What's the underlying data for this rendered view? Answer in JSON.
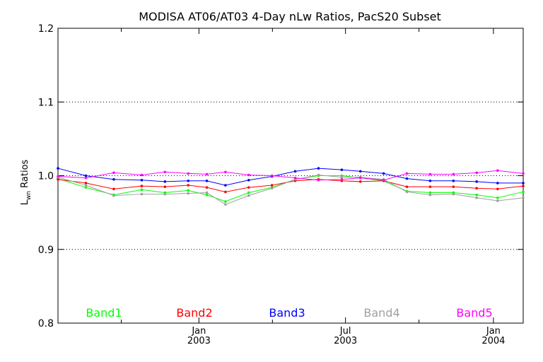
{
  "chart_data": {
    "type": "line",
    "title": "MODISA AT06/AT03 4-Day nLw Ratios, PacS20 Subset",
    "ylabel": "L",
    "ylabel_sub": "wn",
    "ylabel_rest": " Ratios",
    "ylim": [
      0.8,
      1.2
    ],
    "yticks": [
      "0.8",
      "0.9",
      "1.0",
      "1.1",
      "1.2"
    ],
    "ytick_values": [
      0.8,
      0.9,
      1.0,
      1.1,
      1.2
    ],
    "gridlines": [
      0.9,
      1.0,
      1.1
    ],
    "xlim": [
      0.0,
      1.0
    ],
    "x_major_ticks": [
      {
        "pos": 0.303,
        "month": "Jan",
        "year": "2003"
      },
      {
        "pos": 0.618,
        "month": "Jul",
        "year": "2003"
      },
      {
        "pos": 0.936,
        "month": "Jan",
        "year": "2004"
      }
    ],
    "x_minor_ticks": [
      0.136,
      0.461,
      0.776
    ],
    "x": [
      0.0,
      0.06,
      0.12,
      0.18,
      0.23,
      0.28,
      0.32,
      0.36,
      0.41,
      0.46,
      0.51,
      0.56,
      0.61,
      0.65,
      0.7,
      0.75,
      0.8,
      0.85,
      0.9,
      0.945,
      1.0
    ],
    "series": [
      {
        "name": "Band1",
        "color": "#00ff00",
        "values": [
          0.996,
          0.984,
          0.974,
          0.981,
          0.977,
          0.98,
          0.974,
          0.965,
          0.977,
          0.984,
          0.995,
          1.0,
          1.0,
          0.997,
          0.993,
          0.979,
          0.977,
          0.977,
          0.974,
          0.97,
          0.978
        ]
      },
      {
        "name": "Band2",
        "color": "#ff0000",
        "values": [
          0.995,
          0.99,
          0.982,
          0.986,
          0.985,
          0.987,
          0.984,
          0.978,
          0.984,
          0.987,
          0.993,
          0.995,
          0.993,
          0.992,
          0.993,
          0.985,
          0.985,
          0.985,
          0.983,
          0.982,
          0.986
        ]
      },
      {
        "name": "Band3",
        "color": "#0000ff",
        "values": [
          1.01,
          1.0,
          0.995,
          0.994,
          0.992,
          0.993,
          0.993,
          0.987,
          0.994,
          0.999,
          1.006,
          1.01,
          1.008,
          1.006,
          1.003,
          0.996,
          0.993,
          0.993,
          0.992,
          0.99,
          0.99
        ]
      },
      {
        "name": "Band4",
        "color": "#a0a0a0",
        "values": [
          0.998,
          0.987,
          0.973,
          0.975,
          0.975,
          0.976,
          0.977,
          0.961,
          0.973,
          0.983,
          0.995,
          1.001,
          0.998,
          0.998,
          0.995,
          0.978,
          0.974,
          0.975,
          0.97,
          0.966,
          0.97
        ]
      },
      {
        "name": "Band5",
        "color": "#ff00ff",
        "values": [
          0.999,
          0.997,
          1.004,
          1.001,
          1.005,
          1.003,
          1.002,
          1.005,
          1.001,
          1.0,
          0.997,
          0.994,
          0.995,
          0.997,
          0.994,
          1.003,
          1.002,
          1.002,
          1.004,
          1.007,
          1.003
        ]
      }
    ],
    "legend": [
      "Band1",
      "Band2",
      "Band3",
      "Band4",
      "Band5"
    ],
    "legend_placement": "bottom",
    "grid": "dotted horizontal"
  }
}
